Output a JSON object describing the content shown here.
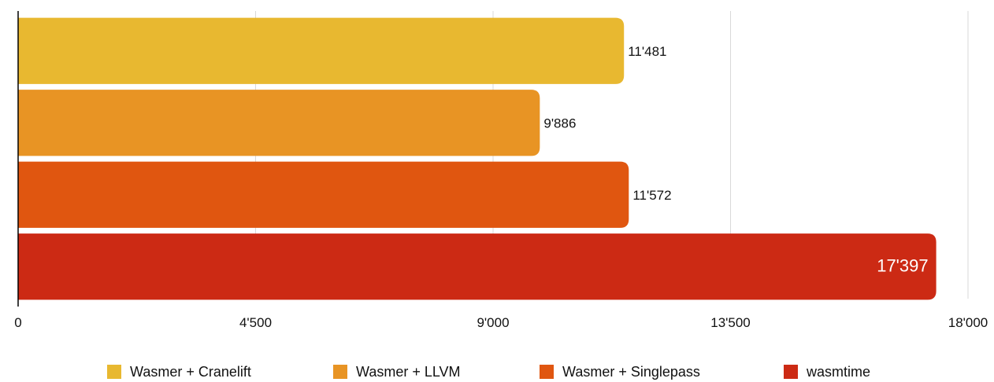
{
  "chart_data": {
    "type": "bar",
    "orientation": "horizontal",
    "title": "",
    "xlabel": "",
    "ylabel": "",
    "xlim": [
      0,
      18000
    ],
    "x_ticks": [
      0,
      4500,
      9000,
      13500,
      18000
    ],
    "x_tick_labels": [
      "0",
      "4'500",
      "9'000",
      "13'500",
      "18'000"
    ],
    "grid": "vertical",
    "legend_position": "bottom",
    "series": [
      {
        "name": "Wasmer + Cranelift",
        "value": 11481,
        "label": "11'481",
        "color": "#E8B830"
      },
      {
        "name": "Wasmer + LLVM",
        "value": 9886,
        "label": "9'886",
        "color": "#E89424"
      },
      {
        "name": "Wasmer + Singlepass",
        "value": 11572,
        "label": "11'572",
        "color": "#E05610"
      },
      {
        "name": "wasmtime",
        "value": 17397,
        "label": "17'397",
        "color": "#CC2A14"
      }
    ]
  }
}
